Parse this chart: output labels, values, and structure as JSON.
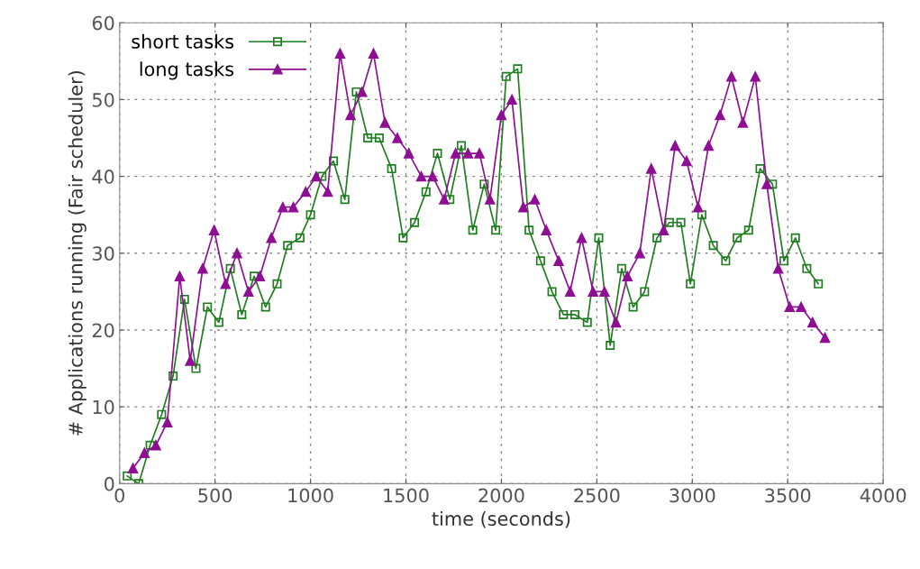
{
  "chart_data": {
    "type": "line",
    "xlabel": "time (seconds)",
    "ylabel": "# Applications running (Fair scheduler)",
    "xlim": [
      0,
      4000
    ],
    "ylim": [
      0,
      60
    ],
    "xticks": [
      0,
      500,
      1000,
      1500,
      2000,
      2500,
      3000,
      3500,
      4000
    ],
    "yticks": [
      0,
      10,
      20,
      30,
      40,
      50,
      60
    ],
    "grid": true,
    "legend": "top left",
    "series": [
      {
        "name": "short tasks",
        "color": "#1e7d1e",
        "marker": "square",
        "x": [
          40,
          100,
          160,
          220,
          280,
          340,
          400,
          460,
          520,
          580,
          640,
          705,
          765,
          825,
          880,
          945,
          1000,
          1060,
          1120,
          1180,
          1240,
          1300,
          1360,
          1425,
          1485,
          1545,
          1605,
          1665,
          1730,
          1790,
          1850,
          1910,
          1970,
          2025,
          2085,
          2145,
          2205,
          2265,
          2325,
          2385,
          2450,
          2510,
          2570,
          2630,
          2690,
          2750,
          2815,
          2880,
          2940,
          2990,
          3050,
          3110,
          3175,
          3235,
          3295,
          3355,
          3420,
          3480,
          3540,
          3600,
          3660
        ],
        "values": [
          1,
          0,
          5,
          9,
          14,
          24,
          15,
          23,
          21,
          28,
          22,
          27,
          23,
          26,
          31,
          32,
          35,
          40,
          42,
          37,
          51,
          45,
          45,
          41,
          32,
          34,
          38,
          43,
          37,
          44,
          33,
          39,
          33,
          53,
          54,
          33,
          29,
          25,
          22,
          22,
          21,
          32,
          18,
          28,
          23,
          25,
          32,
          34,
          34,
          26,
          35,
          31,
          29,
          32,
          33,
          41,
          39,
          29,
          32,
          28,
          26
        ]
      },
      {
        "name": "long tasks",
        "color": "#8e0f93",
        "marker": "triangle",
        "x": [
          70,
          130,
          190,
          250,
          315,
          370,
          435,
          495,
          555,
          615,
          675,
          735,
          795,
          855,
          910,
          975,
          1030,
          1090,
          1155,
          1210,
          1270,
          1330,
          1390,
          1455,
          1515,
          1580,
          1640,
          1700,
          1760,
          1825,
          1885,
          1940,
          2000,
          2055,
          2115,
          2175,
          2235,
          2300,
          2360,
          2420,
          2480,
          2540,
          2600,
          2660,
          2725,
          2785,
          2850,
          2910,
          2970,
          3030,
          3085,
          3145,
          3205,
          3265,
          3330,
          3390,
          3450,
          3510,
          3570,
          3630,
          3695
        ],
        "values": [
          2,
          4,
          5,
          8,
          27,
          16,
          28,
          33,
          26,
          30,
          25,
          27,
          32,
          36,
          36,
          38,
          40,
          38,
          56,
          48,
          51,
          56,
          47,
          45,
          43,
          40,
          40,
          37,
          43,
          43,
          43,
          37,
          48,
          50,
          36,
          37,
          33,
          29,
          25,
          32,
          25,
          25,
          21,
          27,
          30,
          41,
          33,
          44,
          42,
          36,
          44,
          48,
          53,
          47,
          53,
          39,
          28,
          23,
          23,
          21,
          19
        ]
      }
    ]
  }
}
